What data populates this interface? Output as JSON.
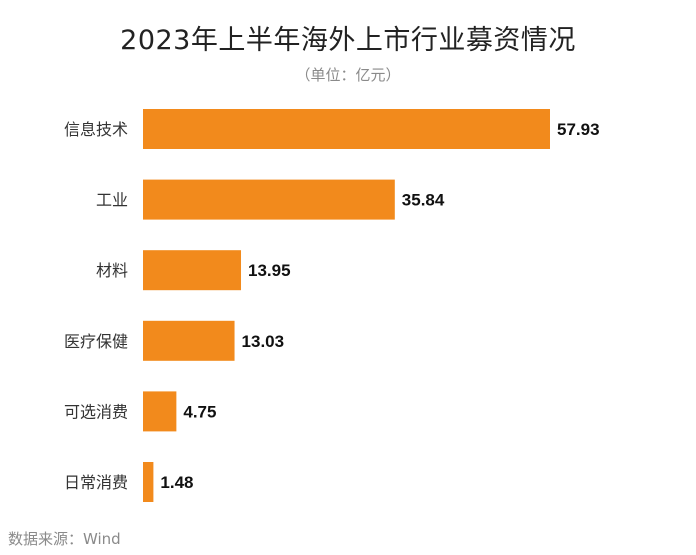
{
  "chart_data": {
    "type": "bar",
    "orientation": "horizontal",
    "title": "2023年上半年海外上市行业募资情况",
    "subtitle": "（单位：亿元）",
    "categories": [
      "信息技术",
      "工业",
      "材料",
      "医疗保健",
      "可选消费",
      "日常消费"
    ],
    "values": [
      57.93,
      35.84,
      13.95,
      13.03,
      4.75,
      1.48
    ],
    "value_labels": [
      "57.93",
      "35.84",
      "13.95",
      "13.03",
      "4.75",
      "1.48"
    ],
    "xlabel": "",
    "ylabel": "",
    "xlim": [
      0,
      57.93
    ],
    "grid": false,
    "legend": "none",
    "bar_color": "#F28A1C"
  },
  "footer": {
    "source": "数据来源：Wind"
  }
}
